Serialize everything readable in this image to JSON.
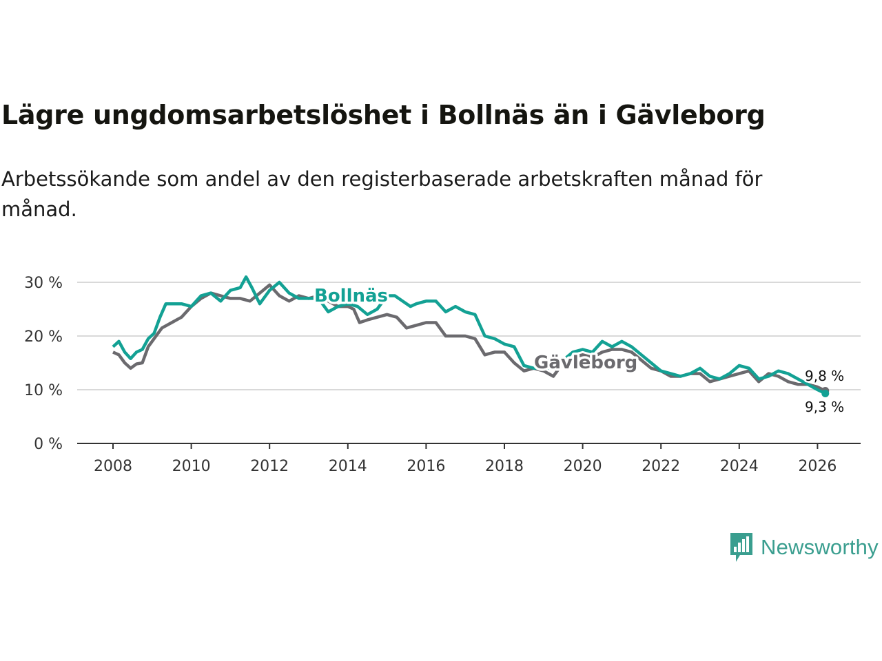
{
  "title": "Lägre ungdomsarbetslöshet i Bollnäs än i Gävleborg",
  "subtitle": "Arbetssökande som andel av den registerbaserade arbetskraften månad för månad.",
  "brand": {
    "name": "Newsworthy",
    "color": "#3a9e8f"
  },
  "chart_data": {
    "type": "line",
    "x_tick_labels": [
      "2008",
      "2010",
      "2012",
      "2014",
      "2016",
      "2018",
      "2020",
      "2022",
      "2024",
      "2026"
    ],
    "y_tick_labels": [
      "0 %",
      "10 %",
      "20 %",
      "30 %"
    ],
    "ylim": [
      0,
      30
    ],
    "xlim": [
      2007.2,
      2026.8
    ],
    "grid": true,
    "series": [
      {
        "name": "Gävleborg",
        "color": "#6b6a6e",
        "end_label": "9,8 %",
        "points": [
          [
            2008.0,
            17.0
          ],
          [
            2008.15,
            16.5
          ],
          [
            2008.3,
            15.0
          ],
          [
            2008.45,
            14.0
          ],
          [
            2008.6,
            14.8
          ],
          [
            2008.75,
            15.0
          ],
          [
            2008.9,
            18.0
          ],
          [
            2009.05,
            19.5
          ],
          [
            2009.25,
            21.5
          ],
          [
            2009.5,
            22.5
          ],
          [
            2009.75,
            23.5
          ],
          [
            2010.0,
            25.5
          ],
          [
            2010.25,
            27.0
          ],
          [
            2010.5,
            28.0
          ],
          [
            2010.75,
            27.5
          ],
          [
            2011.0,
            27.0
          ],
          [
            2011.25,
            27.0
          ],
          [
            2011.5,
            26.5
          ],
          [
            2011.75,
            28.0
          ],
          [
            2012.0,
            29.5
          ],
          [
            2012.25,
            27.5
          ],
          [
            2012.5,
            26.5
          ],
          [
            2012.75,
            27.5
          ],
          [
            2013.0,
            27.0
          ],
          [
            2013.25,
            27.5
          ],
          [
            2013.5,
            26.5
          ],
          [
            2013.75,
            25.5
          ],
          [
            2014.0,
            25.5
          ],
          [
            2014.15,
            25.0
          ],
          [
            2014.3,
            22.5
          ],
          [
            2014.5,
            23.0
          ],
          [
            2014.75,
            23.5
          ],
          [
            2015.0,
            24.0
          ],
          [
            2015.25,
            23.5
          ],
          [
            2015.5,
            21.5
          ],
          [
            2015.75,
            22.0
          ],
          [
            2016.0,
            22.5
          ],
          [
            2016.25,
            22.5
          ],
          [
            2016.5,
            20.0
          ],
          [
            2016.75,
            20.0
          ],
          [
            2017.0,
            20.0
          ],
          [
            2017.25,
            19.5
          ],
          [
            2017.5,
            16.5
          ],
          [
            2017.75,
            17.0
          ],
          [
            2018.0,
            17.0
          ],
          [
            2018.25,
            15.0
          ],
          [
            2018.5,
            13.5
          ],
          [
            2018.75,
            14.0
          ],
          [
            2019.0,
            13.5
          ],
          [
            2019.25,
            12.5
          ],
          [
            2019.5,
            15.0
          ],
          [
            2019.75,
            16.0
          ],
          [
            2020.0,
            16.5
          ],
          [
            2020.25,
            16.0
          ],
          [
            2020.5,
            17.0
          ],
          [
            2020.75,
            17.5
          ],
          [
            2021.0,
            17.5
          ],
          [
            2021.25,
            17.0
          ],
          [
            2021.5,
            15.5
          ],
          [
            2021.75,
            14.0
          ],
          [
            2022.0,
            13.5
          ],
          [
            2022.25,
            12.5
          ],
          [
            2022.5,
            12.5
          ],
          [
            2022.75,
            13.0
          ],
          [
            2023.0,
            13.0
          ],
          [
            2023.25,
            11.5
          ],
          [
            2023.5,
            12.0
          ],
          [
            2023.75,
            12.5
          ],
          [
            2024.0,
            13.0
          ],
          [
            2024.25,
            13.5
          ],
          [
            2024.5,
            11.5
          ],
          [
            2024.75,
            13.0
          ],
          [
            2025.0,
            12.5
          ],
          [
            2025.25,
            11.5
          ],
          [
            2025.5,
            11.0
          ],
          [
            2025.75,
            11.0
          ],
          [
            2026.0,
            10.5
          ],
          [
            2026.2,
            9.8
          ]
        ]
      },
      {
        "name": "Bollnäs",
        "color": "#13a194",
        "end_label": "9,3 %",
        "points": [
          [
            2008.0,
            18.0
          ],
          [
            2008.15,
            19.0
          ],
          [
            2008.3,
            17.0
          ],
          [
            2008.45,
            15.8
          ],
          [
            2008.6,
            17.0
          ],
          [
            2008.75,
            17.5
          ],
          [
            2008.9,
            19.5
          ],
          [
            2009.05,
            20.5
          ],
          [
            2009.2,
            23.5
          ],
          [
            2009.35,
            26.0
          ],
          [
            2009.5,
            26.0
          ],
          [
            2009.75,
            26.0
          ],
          [
            2010.0,
            25.5
          ],
          [
            2010.25,
            27.5
          ],
          [
            2010.5,
            28.0
          ],
          [
            2010.75,
            26.5
          ],
          [
            2011.0,
            28.5
          ],
          [
            2011.25,
            29.0
          ],
          [
            2011.4,
            31.0
          ],
          [
            2011.55,
            29.0
          ],
          [
            2011.75,
            26.0
          ],
          [
            2012.0,
            28.5
          ],
          [
            2012.25,
            30.0
          ],
          [
            2012.5,
            28.0
          ],
          [
            2012.75,
            27.0
          ],
          [
            2013.0,
            27.0
          ],
          [
            2013.25,
            27.0
          ],
          [
            2013.5,
            24.5
          ],
          [
            2013.75,
            25.5
          ],
          [
            2014.0,
            26.0
          ],
          [
            2014.25,
            25.5
          ],
          [
            2014.5,
            24.0
          ],
          [
            2014.75,
            25.0
          ],
          [
            2015.0,
            27.5
          ],
          [
            2015.2,
            27.5
          ],
          [
            2015.4,
            26.5
          ],
          [
            2015.6,
            25.5
          ],
          [
            2015.75,
            26.0
          ],
          [
            2016.0,
            26.5
          ],
          [
            2016.25,
            26.5
          ],
          [
            2016.5,
            24.5
          ],
          [
            2016.75,
            25.5
          ],
          [
            2017.0,
            24.5
          ],
          [
            2017.25,
            24.0
          ],
          [
            2017.5,
            20.0
          ],
          [
            2017.75,
            19.5
          ],
          [
            2018.0,
            18.5
          ],
          [
            2018.25,
            18.0
          ],
          [
            2018.5,
            14.5
          ],
          [
            2018.75,
            14.0
          ],
          [
            2019.0,
            14.0
          ],
          [
            2019.25,
            14.0
          ],
          [
            2019.5,
            15.5
          ],
          [
            2019.75,
            17.0
          ],
          [
            2020.0,
            17.5
          ],
          [
            2020.25,
            17.0
          ],
          [
            2020.5,
            19.0
          ],
          [
            2020.75,
            18.0
          ],
          [
            2021.0,
            19.0
          ],
          [
            2021.25,
            18.0
          ],
          [
            2021.5,
            16.5
          ],
          [
            2021.75,
            15.0
          ],
          [
            2022.0,
            13.5
          ],
          [
            2022.25,
            13.0
          ],
          [
            2022.5,
            12.5
          ],
          [
            2022.75,
            13.0
          ],
          [
            2023.0,
            14.0
          ],
          [
            2023.25,
            12.5
          ],
          [
            2023.5,
            12.0
          ],
          [
            2023.75,
            13.0
          ],
          [
            2024.0,
            14.5
          ],
          [
            2024.25,
            14.0
          ],
          [
            2024.5,
            12.0
          ],
          [
            2024.75,
            12.5
          ],
          [
            2025.0,
            13.5
          ],
          [
            2025.25,
            13.0
          ],
          [
            2025.5,
            12.0
          ],
          [
            2025.75,
            11.0
          ],
          [
            2026.0,
            10.0
          ],
          [
            2026.2,
            9.3
          ]
        ]
      }
    ]
  }
}
